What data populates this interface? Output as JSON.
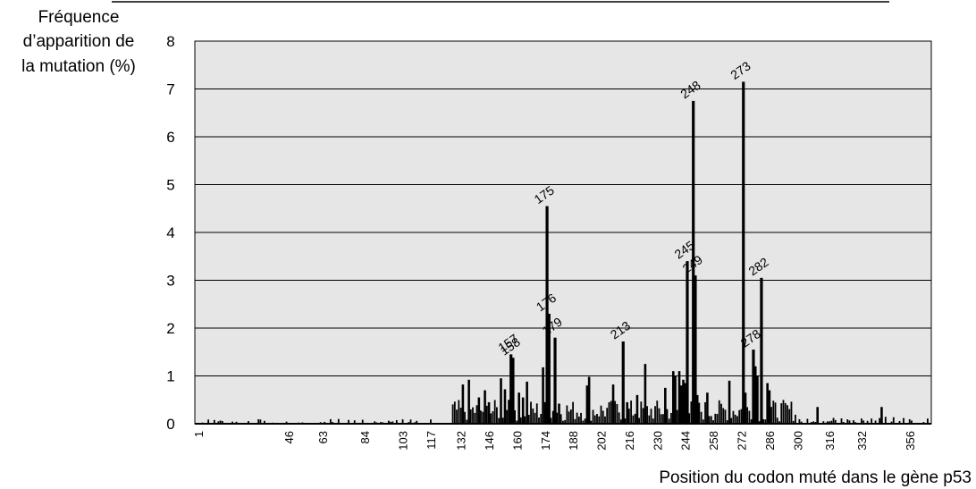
{
  "chart_data": {
    "type": "bar",
    "ylabel_lines": [
      "Fréquence",
      "d’apparition de",
      "la mutation (%)"
    ],
    "xlabel": "Position du codon muté dans le gène p53",
    "ylim": [
      0,
      8
    ],
    "yticks": [
      0,
      1,
      2,
      3,
      4,
      5,
      6,
      7,
      8
    ],
    "xlim": [
      1,
      365
    ],
    "xticks": [
      1,
      46,
      63,
      84,
      103,
      117,
      132,
      146,
      160,
      174,
      188,
      202,
      216,
      230,
      244,
      258,
      272,
      286,
      300,
      316,
      332,
      356
    ],
    "grid": true,
    "labeled_codons": [
      {
        "codon": "157",
        "value": 1.45
      },
      {
        "codon": "158",
        "value": 1.38
      },
      {
        "codon": "175",
        "value": 4.55
      },
      {
        "codon": "176",
        "value": 2.3
      },
      {
        "codon": "179",
        "value": 1.8
      },
      {
        "codon": "213",
        "value": 1.72
      },
      {
        "codon": "245",
        "value": 3.4
      },
      {
        "codon": "248",
        "value": 6.75
      },
      {
        "codon": "249",
        "value": 3.1
      },
      {
        "codon": "273",
        "value": 7.15
      },
      {
        "codon": "278",
        "value": 1.55
      },
      {
        "codon": "282",
        "value": 3.05
      }
    ],
    "other_bars": [
      [
        133,
        0.82
      ],
      [
        136,
        0.92
      ],
      [
        141,
        0.55
      ],
      [
        144,
        0.7
      ],
      [
        146,
        0.45
      ],
      [
        152,
        0.95
      ],
      [
        154,
        0.72
      ],
      [
        156,
        0.5
      ],
      [
        161,
        0.65
      ],
      [
        163,
        0.55
      ],
      [
        165,
        0.88
      ],
      [
        173,
        1.18
      ],
      [
        181,
        0.42
      ],
      [
        195,
        0.8
      ],
      [
        196,
        0.98
      ],
      [
        208,
        0.82
      ],
      [
        215,
        0.45
      ],
      [
        220,
        0.6
      ],
      [
        224,
        1.25
      ],
      [
        234,
        0.75
      ],
      [
        238,
        1.1
      ],
      [
        239,
        1.0
      ],
      [
        241,
        1.1
      ],
      [
        242,
        0.8
      ],
      [
        243,
        0.92
      ],
      [
        244,
        0.85
      ],
      [
        250,
        0.6
      ],
      [
        255,
        0.65
      ],
      [
        266,
        0.9
      ],
      [
        274,
        0.65
      ],
      [
        279,
        1.2
      ],
      [
        280,
        1.0
      ],
      [
        285,
        0.85
      ],
      [
        286,
        0.7
      ],
      [
        310,
        0.35
      ],
      [
        342,
        0.35
      ]
    ],
    "colors": {
      "bar": "#000000",
      "plot_background": "#e6e6e6",
      "grid": "#000000"
    }
  }
}
